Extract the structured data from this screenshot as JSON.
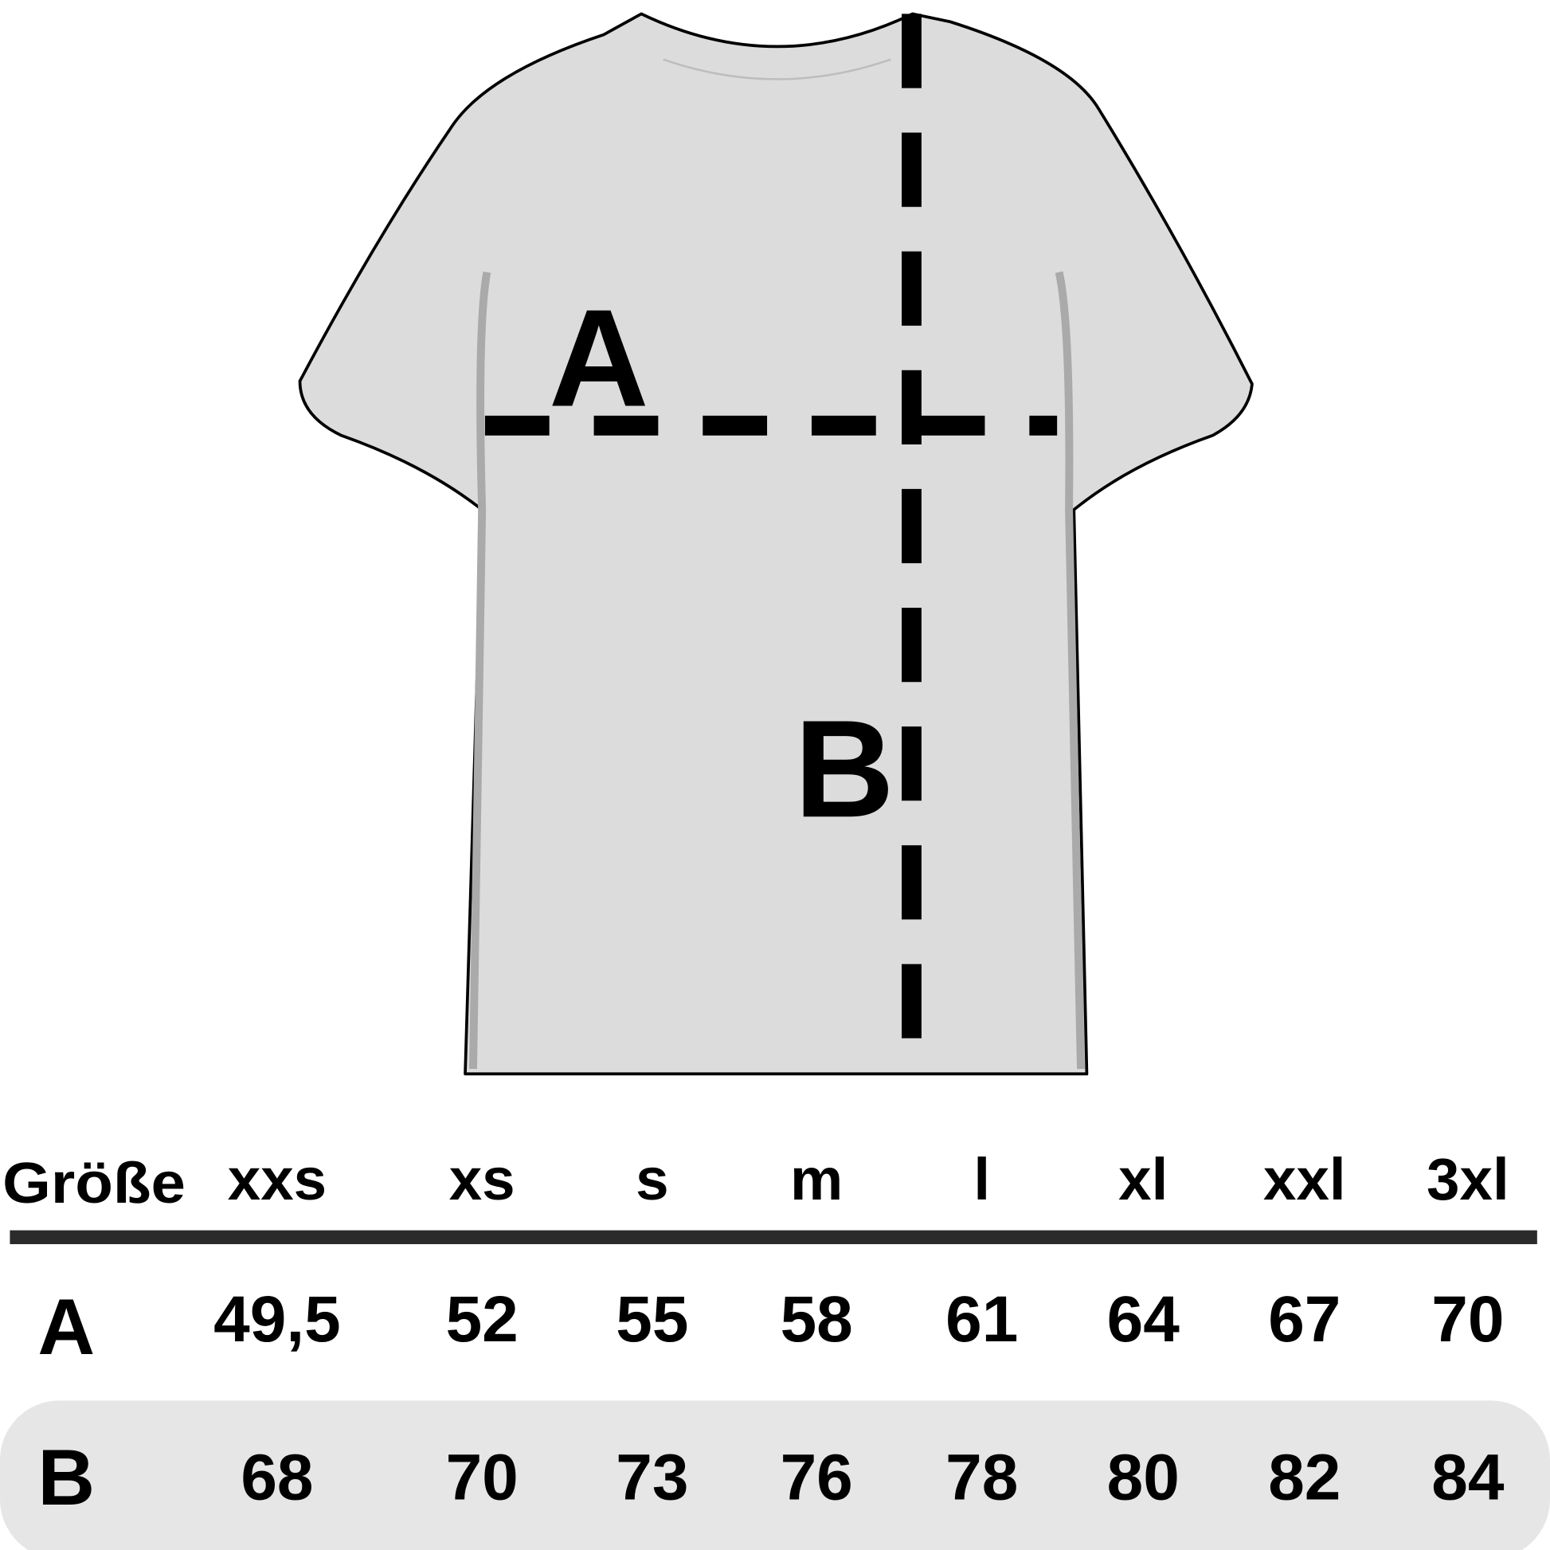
{
  "diagram": {
    "label_a": "A",
    "label_b": "B",
    "shirt_color": "#dcdcdc"
  },
  "table": {
    "header_label": "Größe",
    "sizes": [
      "xxs",
      "xs",
      "s",
      "m",
      "l",
      "xl",
      "xxl",
      "3xl"
    ],
    "rows": [
      {
        "label": "A",
        "values": [
          "49,5",
          "52",
          "55",
          "58",
          "61",
          "64",
          "67",
          "70"
        ]
      },
      {
        "label": "B",
        "values": [
          "68",
          "70",
          "73",
          "76",
          "78",
          "80",
          "82",
          "84"
        ]
      }
    ],
    "highlight_color": "#e6e6e6"
  }
}
